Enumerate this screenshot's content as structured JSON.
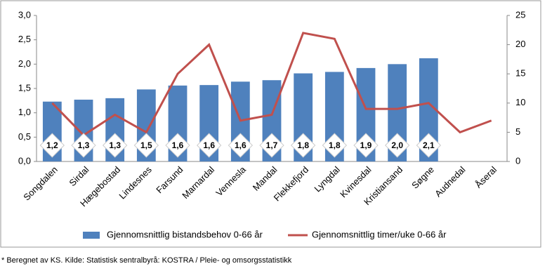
{
  "chart_data": {
    "type": "bar-line",
    "categories": [
      "Songdalen",
      "Sirdal",
      "Hægebostad",
      "Lindesnes",
      "Farsund",
      "Marnardal",
      "Vennesla",
      "Mandal",
      "Flekkefjord",
      "Lyngdal",
      "Kvinesdal",
      "Kristiansand",
      "Søgne",
      "Audnedal",
      "Åseral"
    ],
    "series": [
      {
        "name": "Gjennomsnittlig bistandsbehov 0-66 år",
        "type": "bar",
        "axis": "y",
        "color": "#4f81bd",
        "values": [
          1.23,
          1.27,
          1.3,
          1.48,
          1.56,
          1.57,
          1.64,
          1.67,
          1.81,
          1.84,
          1.92,
          2.0,
          2.12,
          null,
          null
        ],
        "value_labels": [
          "1,2",
          "1,3",
          "1,3",
          "1,5",
          "1,6",
          "1,6",
          "1,6",
          "1,7",
          "1,8",
          "1,8",
          "1,9",
          "2,0",
          "2,1",
          null,
          null
        ]
      },
      {
        "name": "Gjennomsnittlig timer/uke 0-66 år",
        "type": "line",
        "axis": "y2",
        "color": "#c0504d",
        "values": [
          10,
          4.5,
          8,
          5,
          15,
          20,
          7,
          8,
          22,
          21,
          9,
          9,
          10,
          5,
          7
        ]
      }
    ],
    "ylim": [
      0,
      3
    ],
    "yticks": [
      {
        "value": 0,
        "label": "0,0"
      },
      {
        "value": 0.5,
        "label": "0,5"
      },
      {
        "value": 1,
        "label": "1,0"
      },
      {
        "value": 1.5,
        "label": "1,5"
      },
      {
        "value": 2,
        "label": "2,0"
      },
      {
        "value": 2.5,
        "label": "2,5"
      },
      {
        "value": 3,
        "label": "3,0"
      }
    ],
    "y2lim": [
      0,
      25
    ],
    "y2ticks": [
      0,
      5,
      10,
      15,
      20,
      25
    ],
    "grid": false,
    "legend": "bottom",
    "footnote": "* Beregnet av KS. Kilde: Statistisk sentralbyrå: KOSTRA / Pleie- og omsorgsstatistikk"
  }
}
